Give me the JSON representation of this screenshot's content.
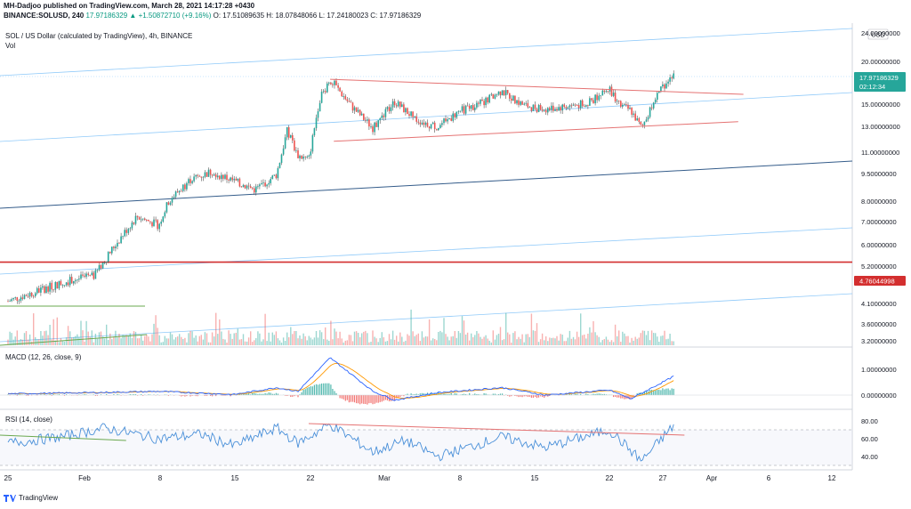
{
  "header": {
    "line1": "MH-Dadjoo published on TradingView.com, March 28, 2021 14:17:28 +0430",
    "symbol_line": "BINANCE:SOLUSD, 240",
    "change": "17.97186329 ▲ +1.50872710 (+9.16%)",
    "open": "O: 17.51089635",
    "high": "H: 18.07848066",
    "low": "L: 17.24180023",
    "close": "C: 17.97186329"
  },
  "panes": {
    "main_title": "SOL / US Dollar (calculated by TradingView), 4h, BINANCE",
    "vol_label": "Vol",
    "macd_label": "MACD (12, 26, close, 9)",
    "rsi_label": "RSI (14, close)",
    "currency_badge": "USD"
  },
  "price_axis": {
    "ticks": [
      "24.00000000",
      "20.00000000",
      "15.00000000",
      "13.00000000",
      "11.00000000",
      "9.50000000",
      "8.00000000",
      "7.00000000",
      "6.00000000",
      "5.20000000",
      "4.10000000",
      "3.60000000",
      "3.20000000"
    ],
    "last_price_label": "17.97186329",
    "countdown_label": "02:12:34",
    "line_price_label": "4.76044998"
  },
  "macd_axis": {
    "ticks": [
      "1.00000000",
      "0.00000000"
    ]
  },
  "rsi_axis": {
    "ticks": [
      "80.00",
      "60.00",
      "40.00"
    ]
  },
  "time_axis": {
    "ticks": [
      "25",
      "Feb",
      "8",
      "15",
      "22",
      "Mar",
      "8",
      "15",
      "22",
      "27",
      "Apr",
      "6",
      "12"
    ]
  },
  "footer": {
    "brand": "TradingView"
  },
  "colors": {
    "up": "#26a69a",
    "down": "#ef5350",
    "macd_line": "#2962ff",
    "signal_line": "#ff9800",
    "rsi_line": "#4a90d9",
    "trendline_red": "#e57373",
    "trendline_green": "#6aa84f",
    "channel_blue": "#90caf9",
    "mid_blue": "#345c8a",
    "horizontal_red": "#d32f2f"
  },
  "chart_data": {
    "type": "candlestick",
    "symbol": "BINANCE:SOLUSD",
    "interval": "4h",
    "x_ticks": [
      "25",
      "Feb",
      "8",
      "15",
      "22",
      "Mar",
      "8",
      "15",
      "22",
      "27",
      "Apr",
      "6",
      "12"
    ],
    "y_scale": "log",
    "ylim": [
      3.0,
      24.0
    ],
    "last_close": 17.97186329,
    "horizontal_level": 4.76044998,
    "close_path": [
      {
        "x": "Jan 25",
        "y": 3.6
      },
      {
        "x": "Jan 28",
        "y": 3.9
      },
      {
        "x": "Jan 31",
        "y": 4.2
      },
      {
        "x": "Feb 2",
        "y": 4.3
      },
      {
        "x": "Feb 4",
        "y": 5.4
      },
      {
        "x": "Feb 6",
        "y": 6.6
      },
      {
        "x": "Feb 8",
        "y": 6.2
      },
      {
        "x": "Feb 9",
        "y": 7.4
      },
      {
        "x": "Feb 11",
        "y": 8.6
      },
      {
        "x": "Feb 13",
        "y": 9.1
      },
      {
        "x": "Feb 15",
        "y": 8.5
      },
      {
        "x": "Feb 17",
        "y": 8.0
      },
      {
        "x": "Feb 19",
        "y": 8.9
      },
      {
        "x": "Feb 20",
        "y": 12.2
      },
      {
        "x": "Feb 21",
        "y": 10.2
      },
      {
        "x": "Feb 22",
        "y": 9.9
      },
      {
        "x": "Feb 23",
        "y": 15.2
      },
      {
        "x": "Feb 24",
        "y": 17.6
      },
      {
        "x": "Feb 26",
        "y": 14.5
      },
      {
        "x": "Feb 28",
        "y": 12.4
      },
      {
        "x": "Mar 2",
        "y": 15.0
      },
      {
        "x": "Mar 4",
        "y": 13.2
      },
      {
        "x": "Mar 6",
        "y": 12.5
      },
      {
        "x": "Mar 8",
        "y": 14.0
      },
      {
        "x": "Mar 10",
        "y": 14.8
      },
      {
        "x": "Mar 12",
        "y": 16.2
      },
      {
        "x": "Mar 14",
        "y": 14.6
      },
      {
        "x": "Mar 16",
        "y": 14.2
      },
      {
        "x": "Mar 18",
        "y": 14.5
      },
      {
        "x": "Mar 20",
        "y": 14.8
      },
      {
        "x": "Mar 22",
        "y": 16.5
      },
      {
        "x": "Mar 23",
        "y": 14.6
      },
      {
        "x": "Mar 24",
        "y": 14.1
      },
      {
        "x": "Mar 25",
        "y": 12.4
      },
      {
        "x": "Mar 26",
        "y": 14.8
      },
      {
        "x": "Mar 27",
        "y": 16.8
      },
      {
        "x": "Mar 28",
        "y": 17.97
      }
    ],
    "macd": {
      "label": "MACD (12, 26, close, 9)",
      "ylim": [
        -0.5,
        1.6
      ],
      "macd_path": [
        {
          "x": "Jan 25",
          "y": 0.05
        },
        {
          "x": "Feb 2",
          "y": 0.1
        },
        {
          "x": "Feb 8",
          "y": 0.15
        },
        {
          "x": "Feb 15",
          "y": 0.02
        },
        {
          "x": "Feb 19",
          "y": 0.3
        },
        {
          "x": "Feb 21",
          "y": 0.15
        },
        {
          "x": "Feb 24",
          "y": 1.5
        },
        {
          "x": "Feb 28",
          "y": 0.15
        },
        {
          "x": "Mar 2",
          "y": -0.2
        },
        {
          "x": "Mar 6",
          "y": 0.1
        },
        {
          "x": "Mar 12",
          "y": 0.3
        },
        {
          "x": "Mar 16",
          "y": 0.0
        },
        {
          "x": "Mar 22",
          "y": 0.2
        },
        {
          "x": "Mar 24",
          "y": -0.15
        },
        {
          "x": "Mar 28",
          "y": 0.75
        }
      ]
    },
    "rsi": {
      "label": "RSI (14, close)",
      "ylim": [
        25,
        85
      ],
      "bands": [
        70,
        30
      ],
      "rsi_path": [
        {
          "x": "Jan 25",
          "y": 55
        },
        {
          "x": "Jan 30",
          "y": 62
        },
        {
          "x": "Feb 3",
          "y": 72
        },
        {
          "x": "Feb 8",
          "y": 60
        },
        {
          "x": "Feb 12",
          "y": 65
        },
        {
          "x": "Feb 15",
          "y": 52
        },
        {
          "x": "Feb 19",
          "y": 72
        },
        {
          "x": "Feb 21",
          "y": 55
        },
        {
          "x": "Feb 24",
          "y": 76
        },
        {
          "x": "Feb 28",
          "y": 45
        },
        {
          "x": "Mar 3",
          "y": 58
        },
        {
          "x": "Mar 6",
          "y": 40
        },
        {
          "x": "Mar 12",
          "y": 62
        },
        {
          "x": "Mar 16",
          "y": 50
        },
        {
          "x": "Mar 22",
          "y": 70
        },
        {
          "x": "Mar 25",
          "y": 35
        },
        {
          "x": "Mar 28",
          "y": 75
        }
      ]
    }
  }
}
